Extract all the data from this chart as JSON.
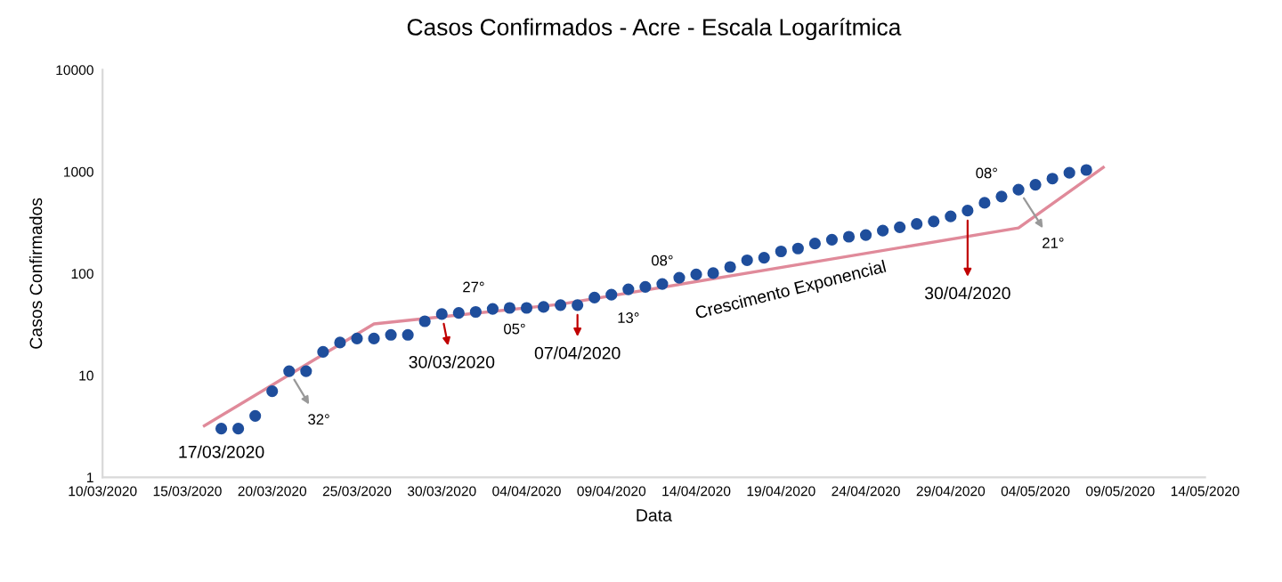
{
  "chart_data": {
    "type": "scatter",
    "title": "Casos Confirmados - Acre - Escala Logarítmica",
    "xlabel": "Data",
    "ylabel": "Casos Confirmados",
    "log": "y",
    "grid": false,
    "legend": false,
    "marker": "circle",
    "xlim": [
      "2020-03-10",
      "2020-05-14"
    ],
    "xticks": [
      {
        "value": "2020-03-10",
        "label": "10/03/2020"
      },
      {
        "value": "2020-03-15",
        "label": "15/03/2020"
      },
      {
        "value": "2020-03-20",
        "label": "20/03/2020"
      },
      {
        "value": "2020-03-25",
        "label": "25/03/2020"
      },
      {
        "value": "2020-03-30",
        "label": "30/03/2020"
      },
      {
        "value": "2020-04-04",
        "label": "04/04/2020"
      },
      {
        "value": "2020-04-09",
        "label": "09/04/2020"
      },
      {
        "value": "2020-04-14",
        "label": "14/04/2020"
      },
      {
        "value": "2020-04-19",
        "label": "19/04/2020"
      },
      {
        "value": "2020-04-24",
        "label": "24/04/2020"
      },
      {
        "value": "2020-04-29",
        "label": "29/04/2020"
      },
      {
        "value": "2020-05-04",
        "label": "04/05/2020"
      },
      {
        "value": "2020-05-09",
        "label": "09/05/2020"
      },
      {
        "value": "2020-05-14",
        "label": "14/05/2020"
      }
    ],
    "ylim": [
      1,
      10000
    ],
    "yticks": [
      1,
      10,
      100,
      1000,
      10000
    ],
    "series": [
      {
        "color": "#1f4e9c",
        "x": [
          "2020-03-17",
          "2020-03-18",
          "2020-03-19",
          "2020-03-20",
          "2020-03-21",
          "2020-03-22",
          "2020-03-23",
          "2020-03-24",
          "2020-03-25",
          "2020-03-26",
          "2020-03-27",
          "2020-03-28",
          "2020-03-29",
          "2020-03-30",
          "2020-03-31",
          "2020-04-01",
          "2020-04-02",
          "2020-04-03",
          "2020-04-04",
          "2020-04-05",
          "2020-04-06",
          "2020-04-07",
          "2020-04-08",
          "2020-04-09",
          "2020-04-10",
          "2020-04-11",
          "2020-04-12",
          "2020-04-13",
          "2020-04-14",
          "2020-04-15",
          "2020-04-16",
          "2020-04-17",
          "2020-04-18",
          "2020-04-19",
          "2020-04-20",
          "2020-04-21",
          "2020-04-22",
          "2020-04-23",
          "2020-04-24",
          "2020-04-25",
          "2020-04-26",
          "2020-04-27",
          "2020-04-28",
          "2020-04-29",
          "2020-04-30",
          "2020-05-01",
          "2020-05-02",
          "2020-05-03",
          "2020-05-04",
          "2020-05-05",
          "2020-05-06",
          "2020-05-07"
        ],
        "values": [
          3,
          3,
          4,
          7,
          11,
          11,
          17,
          21,
          23,
          23,
          25,
          25,
          34,
          40,
          41,
          42,
          45,
          46,
          46,
          47,
          49,
          49,
          58,
          62,
          70,
          74,
          79,
          91,
          98,
          101,
          116,
          135,
          143,
          165,
          176,
          197,
          215,
          230,
          239,
          264,
          285,
          307,
          325,
          364,
          415,
          495,
          570,
          665,
          745,
          855,
          975,
          1040
        ]
      },
      {
        "type": "line",
        "color": "#e08a9a",
        "marker": "none",
        "x": [
          "2020-03-16",
          "2020-03-26",
          "2020-04-06",
          "2020-05-03",
          "2020-05-08"
        ],
        "values": [
          3.2,
          32,
          50,
          280,
          1100
        ]
      }
    ],
    "annotations": [
      {
        "text": "17/03/2020",
        "x": "2020-03-17",
        "y": 3
      },
      {
        "text": "32°",
        "x": "2020-03-21",
        "y": 11
      },
      {
        "text": "27°",
        "x": "2020-03-31",
        "y": 41
      },
      {
        "text": "30/03/2020",
        "x": "2020-03-30",
        "y": 40
      },
      {
        "text": "05°",
        "x": "2020-04-03",
        "y": 46
      },
      {
        "text": "07/04/2020",
        "x": "2020-04-07",
        "y": 49
      },
      {
        "text": "13°",
        "x": "2020-04-10",
        "y": 70
      },
      {
        "text": "08°",
        "x": "2020-04-12",
        "y": 79
      },
      {
        "text": "Crescimento Exponencial",
        "x": "2020-04-19",
        "y": 165
      },
      {
        "text": "30/04/2020",
        "x": "2020-04-30",
        "y": 415
      },
      {
        "text": "08°",
        "x": "2020-05-02",
        "y": 570
      },
      {
        "text": "21°",
        "x": "2020-05-03",
        "y": 665
      }
    ]
  }
}
